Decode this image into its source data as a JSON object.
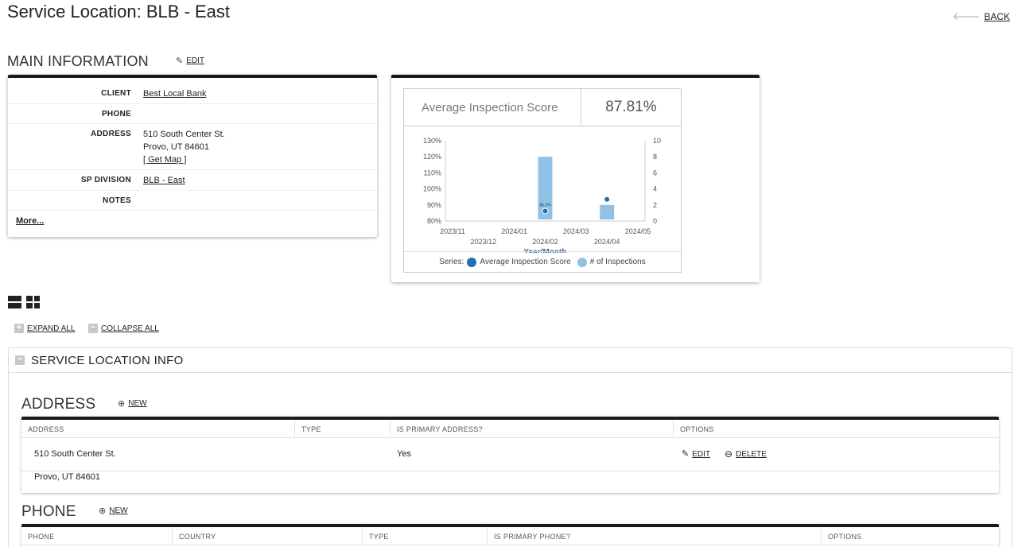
{
  "page": {
    "title": "Service Location: BLB - East",
    "back_label": "BACK"
  },
  "main_info": {
    "heading": "MAIN INFORMATION",
    "edit_label": "EDIT",
    "fields": {
      "client_label": "CLIENT",
      "client_value": "Best Local Bank",
      "phone_label": "PHONE",
      "phone_value": "",
      "address_label": "ADDRESS",
      "address_line1": "510 South Center St.",
      "address_line2": "Provo, UT 84601",
      "get_map": "[ Get Map ]",
      "division_label": "SP DIVISION",
      "division_value": "BLB - East",
      "notes_label": "NOTES",
      "notes_value": ""
    },
    "more_label": "More..."
  },
  "score_widget": {
    "title": "Average Inspection Score",
    "score": "87.81%"
  },
  "chart_data": {
    "type": "bar",
    "xlabel": "Year/Month",
    "categories": [
      "2023/11",
      "2023/12",
      "2024/01",
      "2024/02",
      "2024/03",
      "2024/04",
      "2024/05"
    ],
    "left_axis": {
      "ticks": [
        "80%",
        "90%",
        "100%",
        "110%",
        "120%",
        "130%"
      ],
      "range": [
        80,
        130
      ]
    },
    "right_axis": {
      "ticks": [
        "0",
        "2",
        "4",
        "6",
        "8",
        "10"
      ],
      "range": [
        0,
        10
      ]
    },
    "series": [
      {
        "name": "# of Inspections",
        "axis": "right",
        "color": "#90c2e7",
        "points": [
          {
            "x": "2024/02",
            "value": 8
          },
          {
            "x": "2024/04",
            "value": 2
          }
        ]
      },
      {
        "name": "Average Inspection Score",
        "axis": "left",
        "color": "#1f6fb5",
        "points": [
          {
            "x": "2024/02",
            "value": 86.2,
            "label": "86.2%"
          },
          {
            "x": "2024/04",
            "value": 93.5
          }
        ]
      }
    ],
    "legend_prefix": "Series:",
    "legend_position": "bottom"
  },
  "controls": {
    "expand_all": "EXPAND ALL",
    "collapse_all": "COLLAPSE ALL"
  },
  "service_location_info": {
    "title": "SERVICE LOCATION INFO",
    "address": {
      "heading": "ADDRESS",
      "new_label": "NEW",
      "columns": [
        "ADDRESS",
        "TYPE",
        "IS PRIMARY ADDRESS?",
        "OPTIONS"
      ],
      "rows": [
        {
          "line1": "510 South Center St.",
          "line2": "Provo, UT 84601",
          "type": "",
          "primary": "Yes",
          "edit": "EDIT",
          "delete": "DELETE"
        }
      ]
    },
    "phone": {
      "heading": "PHONE",
      "new_label": "NEW",
      "columns": [
        "PHONE",
        "COUNTRY",
        "TYPE",
        "IS PRIMARY PHONE?",
        "OPTIONS"
      ]
    }
  },
  "colors": {
    "accent_bar": "#1a1a1a",
    "bar_fill": "#90c2e7",
    "score_dot": "#1f6fb5",
    "axis_title": "#2f5d8f"
  }
}
